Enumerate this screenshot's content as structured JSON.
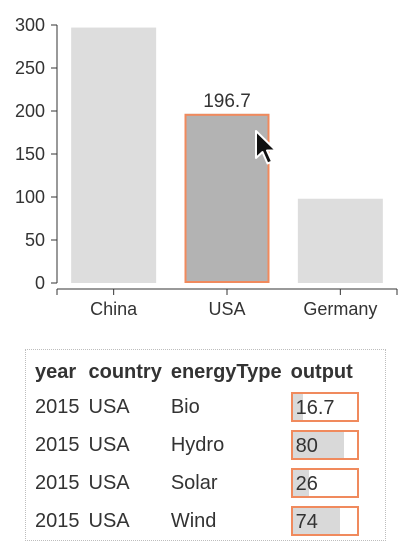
{
  "chart_data": {
    "type": "bar",
    "categories": [
      "China",
      "USA",
      "Germany"
    ],
    "values": [
      297,
      196.7,
      98
    ],
    "ylim": [
      0,
      300
    ],
    "yticks": [
      0,
      50,
      100,
      150,
      200,
      250,
      300
    ],
    "highlighted_category": "USA",
    "highlight_label": "196.7",
    "title": "",
    "xlabel": "",
    "ylabel": "",
    "grid": false,
    "colors": {
      "bar": "#dddddd",
      "bar_highlight": "#b3b3b3",
      "highlight_border": "#f08a5d",
      "axis": "#333333"
    }
  },
  "table": {
    "headers": {
      "year": "year",
      "country": "country",
      "energyType": "energyType",
      "output": "output"
    },
    "output_max": 100,
    "rows": [
      {
        "year": "2015",
        "country": "USA",
        "energyType": "Bio",
        "output": "16.7",
        "output_value": 16.7
      },
      {
        "year": "2015",
        "country": "USA",
        "energyType": "Hydro",
        "output": "80",
        "output_value": 80
      },
      {
        "year": "2015",
        "country": "USA",
        "energyType": "Solar",
        "output": "26",
        "output_value": 26
      },
      {
        "year": "2015",
        "country": "USA",
        "energyType": "Wind",
        "output": "74",
        "output_value": 74
      }
    ]
  },
  "cursor": {
    "icon": "mouse-pointer-icon"
  }
}
